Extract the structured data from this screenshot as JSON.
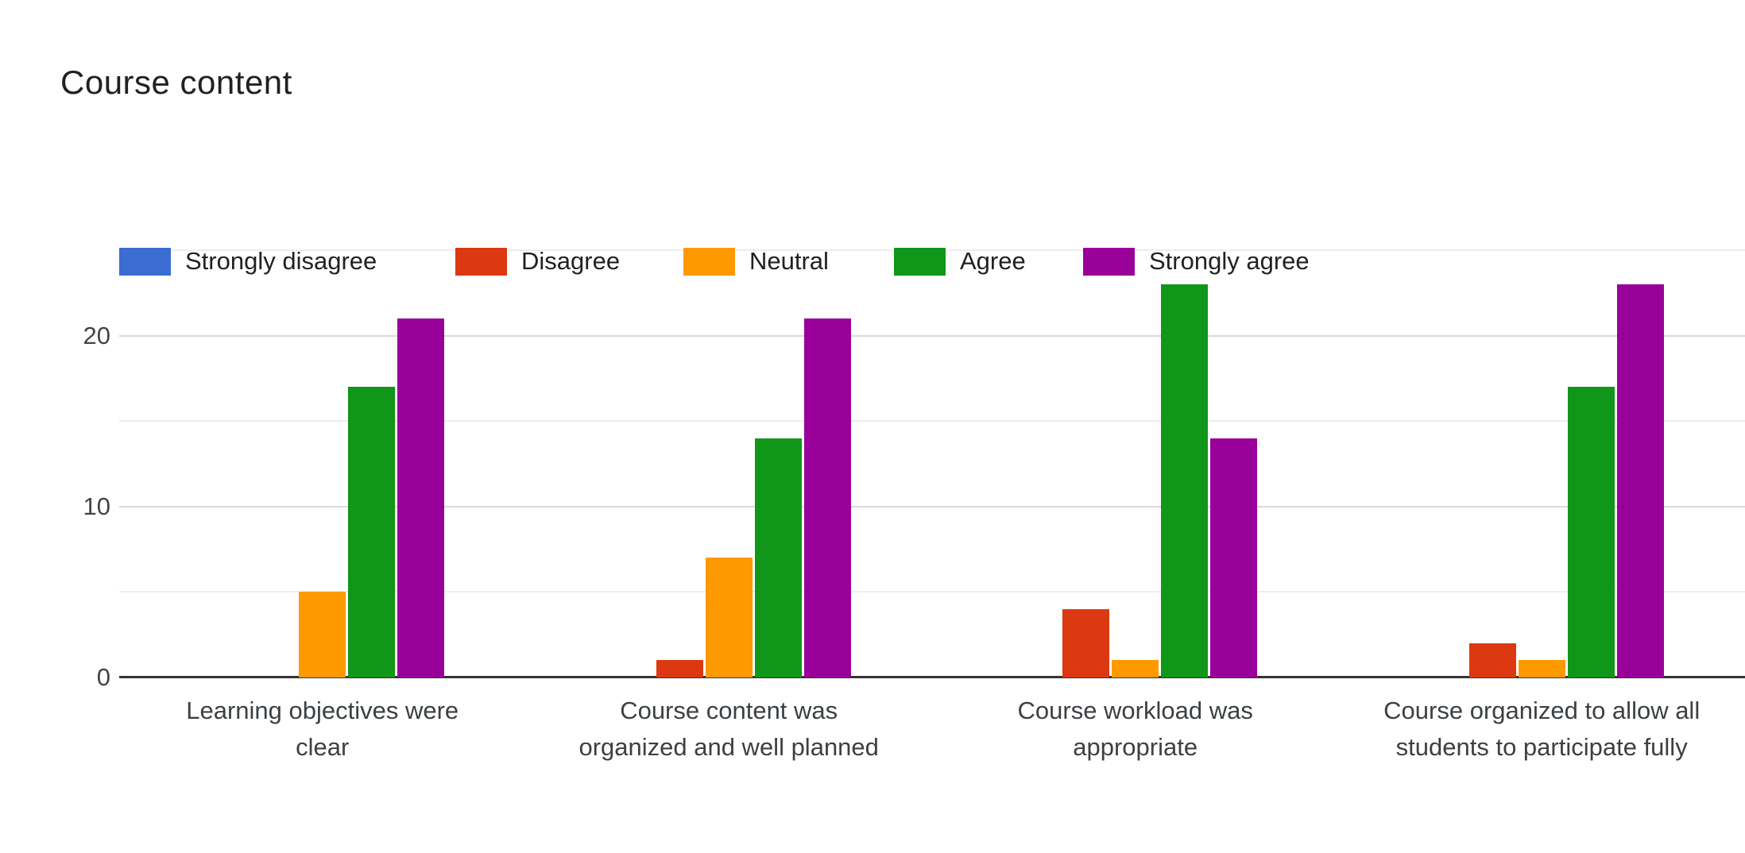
{
  "chart_data": {
    "type": "bar",
    "title": "Course content",
    "categories": [
      "Learning objectives were clear",
      "Course content was organized and well planned",
      "Course workload was appropriate",
      "Course organized to allow all students to participate fully"
    ],
    "category_label_lines": [
      [
        "Learning objectives were",
        "clear"
      ],
      [
        "Course content was",
        "organized and well planned"
      ],
      [
        "Course workload was",
        "appropriate"
      ],
      [
        "Course organized to allow all",
        "students to participate fully"
      ]
    ],
    "series": [
      {
        "name": "Strongly disagree",
        "color": "#3a6cd2",
        "values": [
          0,
          0,
          0,
          0
        ]
      },
      {
        "name": "Disagree",
        "color": "#dc3912",
        "values": [
          0,
          1,
          4,
          2
        ]
      },
      {
        "name": "Neutral",
        "color": "#ff9900",
        "values": [
          5,
          7,
          1,
          1
        ]
      },
      {
        "name": "Agree",
        "color": "#109618",
        "values": [
          17,
          14,
          23,
          17
        ]
      },
      {
        "name": "Strongly agree",
        "color": "#990099",
        "values": [
          21,
          21,
          14,
          23
        ]
      }
    ],
    "y_axis": {
      "ylim": [
        0,
        25
      ],
      "tick_labels": [
        "0",
        "10",
        "20"
      ],
      "tick_values": [
        0,
        10,
        20
      ],
      "gridline_values": [
        5,
        10,
        15,
        20,
        25
      ]
    },
    "legend_position": "top",
    "grid": true,
    "colors": {
      "background": "#ffffff",
      "axis_line": "#333333",
      "gridline_major": "#d9d9d9",
      "gridline_minor": "#ededed",
      "tick_label": "#444444",
      "category_label": "#3c4043",
      "title": "#202124"
    }
  }
}
